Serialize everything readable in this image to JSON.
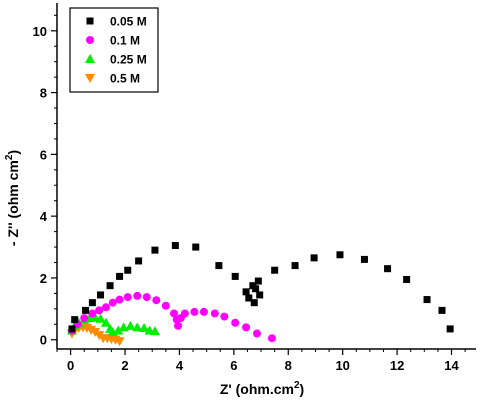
{
  "chart_data": {
    "type": "scatter",
    "title": "",
    "xlabel": "Z' (ohm.cm",
    "xlabel_sup": "2",
    "xlabel_end": ")",
    "ylabel": "- Z'' (ohm cm",
    "ylabel_sup": "2",
    "ylabel_end": ")",
    "xlim": [
      -0.5,
      14.9
    ],
    "ylim": [
      -0.3,
      10.9
    ],
    "xticks": [
      0,
      2,
      4,
      6,
      8,
      10,
      12,
      14
    ],
    "yticks": [
      0,
      2,
      4,
      6,
      8,
      10
    ],
    "grid": false,
    "legend_position": "top-left",
    "series": [
      {
        "name": "0.05 M",
        "marker": "square",
        "color": "#000000",
        "points": [
          [
            0.05,
            0.35
          ],
          [
            0.15,
            0.65
          ],
          [
            0.55,
            0.95
          ],
          [
            0.8,
            1.2
          ],
          [
            1.1,
            1.45
          ],
          [
            1.45,
            1.75
          ],
          [
            1.8,
            2.05
          ],
          [
            2.1,
            2.25
          ],
          [
            2.5,
            2.55
          ],
          [
            3.1,
            2.9
          ],
          [
            3.85,
            3.05
          ],
          [
            4.6,
            3.0
          ],
          [
            5.45,
            2.4
          ],
          [
            6.05,
            2.05
          ],
          [
            6.45,
            1.55
          ],
          [
            6.55,
            1.35
          ],
          [
            6.7,
            1.75
          ],
          [
            6.75,
            1.2
          ],
          [
            6.8,
            1.65
          ],
          [
            6.9,
            1.9
          ],
          [
            6.95,
            1.45
          ],
          [
            7.5,
            2.25
          ],
          [
            8.25,
            2.4
          ],
          [
            8.95,
            2.65
          ],
          [
            9.9,
            2.75
          ],
          [
            10.8,
            2.6
          ],
          [
            11.65,
            2.3
          ],
          [
            12.35,
            1.95
          ],
          [
            13.1,
            1.3
          ],
          [
            13.65,
            0.95
          ],
          [
            13.95,
            0.35
          ]
        ]
      },
      {
        "name": "0.1 M",
        "marker": "circle",
        "color": "#ff00ff",
        "points": [
          [
            0.05,
            0.3
          ],
          [
            0.25,
            0.5
          ],
          [
            0.5,
            0.7
          ],
          [
            0.8,
            0.85
          ],
          [
            1.05,
            0.95
          ],
          [
            1.3,
            1.05
          ],
          [
            1.55,
            1.2
          ],
          [
            1.8,
            1.3
          ],
          [
            2.1,
            1.38
          ],
          [
            2.45,
            1.42
          ],
          [
            2.8,
            1.38
          ],
          [
            3.15,
            1.28
          ],
          [
            3.5,
            1.1
          ],
          [
            3.8,
            0.85
          ],
          [
            3.9,
            0.65
          ],
          [
            3.95,
            0.45
          ],
          [
            4.05,
            0.7
          ],
          [
            4.2,
            0.85
          ],
          [
            4.55,
            0.9
          ],
          [
            4.9,
            0.9
          ],
          [
            5.3,
            0.85
          ],
          [
            5.65,
            0.75
          ],
          [
            6.05,
            0.55
          ],
          [
            6.45,
            0.4
          ],
          [
            6.85,
            0.2
          ],
          [
            7.4,
            0.05
          ]
        ]
      },
      {
        "name": "0.25 M",
        "marker": "triangle-up",
        "color": "#00ee00",
        "points": [
          [
            0.05,
            0.3
          ],
          [
            0.15,
            0.45
          ],
          [
            0.3,
            0.55
          ],
          [
            0.5,
            0.65
          ],
          [
            0.7,
            0.7
          ],
          [
            0.9,
            0.72
          ],
          [
            1.1,
            0.68
          ],
          [
            1.3,
            0.55
          ],
          [
            1.45,
            0.35
          ],
          [
            1.55,
            0.25
          ],
          [
            1.75,
            0.3
          ],
          [
            1.95,
            0.4
          ],
          [
            2.2,
            0.45
          ],
          [
            2.45,
            0.4
          ],
          [
            2.7,
            0.38
          ],
          [
            2.9,
            0.3
          ],
          [
            3.1,
            0.28
          ]
        ]
      },
      {
        "name": "0.5 M",
        "marker": "triangle-down",
        "color": "#ff8c00",
        "points": [
          [
            0.05,
            0.2
          ],
          [
            0.15,
            0.3
          ],
          [
            0.3,
            0.38
          ],
          [
            0.45,
            0.4
          ],
          [
            0.6,
            0.38
          ],
          [
            0.75,
            0.32
          ],
          [
            0.9,
            0.25
          ],
          [
            1.05,
            0.15
          ],
          [
            1.2,
            0.05
          ],
          [
            1.35,
            0.05
          ],
          [
            1.5,
            0.02
          ],
          [
            1.65,
            0.0
          ],
          [
            1.8,
            -0.05
          ]
        ]
      }
    ]
  }
}
